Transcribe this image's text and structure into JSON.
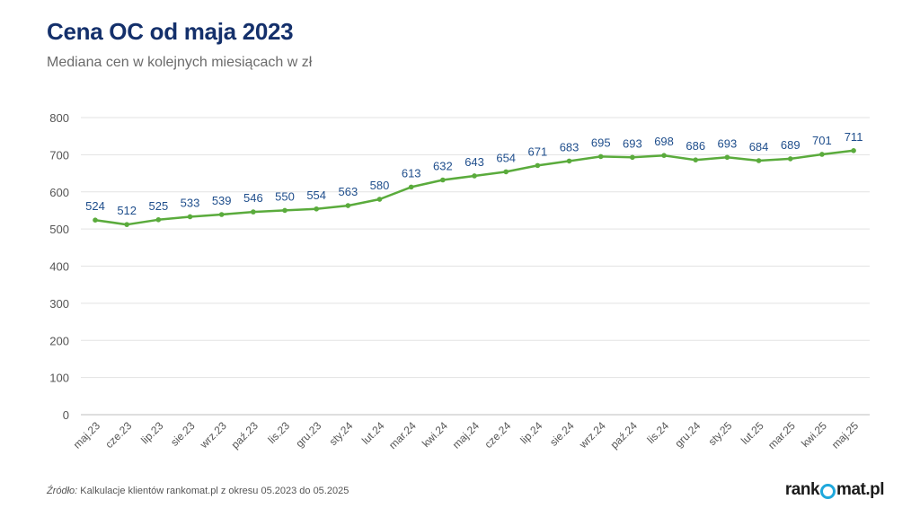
{
  "header": {
    "title": "Cena OC od maja 2023",
    "subtitle": "Mediana cen w kolejnych miesiącach w zł"
  },
  "footer": {
    "source_label": "Źródło:",
    "source_text": " Kalkulacje klientów rankomat.pl z okresu 05.2023 do 05.2025",
    "logo_before": "rank",
    "logo_after": "mat.pl"
  },
  "colors": {
    "title": "#14306b",
    "line": "#5aab3c",
    "data_label": "#1f4e8c",
    "grid": "#e3e3e3",
    "axis_text": "#555555",
    "logo_accent": "#1fa8dc"
  },
  "chart_data": {
    "type": "line",
    "title": "Cena OC od maja 2023",
    "subtitle": "Mediana cen w kolejnych miesiącach w zł",
    "xlabel": "",
    "ylabel": "",
    "ylim": [
      0,
      800
    ],
    "yticks": [
      0,
      100,
      200,
      300,
      400,
      500,
      600,
      700,
      800
    ],
    "grid": true,
    "legend": "none",
    "categories": [
      "maj.23",
      "cze.23",
      "lip.23",
      "sie.23",
      "wrz.23",
      "paź.23",
      "lis.23",
      "gru.23",
      "sty.24",
      "lut.24",
      "mar.24",
      "kwi.24",
      "maj.24",
      "cze.24",
      "lip.24",
      "sie.24",
      "wrz.24",
      "paź.24",
      "lis.24",
      "gru.24",
      "sty.25",
      "lut.25",
      "mar.25",
      "kwi.25",
      "maj.25"
    ],
    "series": [
      {
        "values": [
          524,
          512,
          525,
          533,
          539,
          546,
          550,
          554,
          563,
          580,
          613,
          632,
          643,
          654,
          671,
          683,
          695,
          693,
          698,
          686,
          693,
          684,
          689,
          701,
          711
        ]
      }
    ]
  }
}
